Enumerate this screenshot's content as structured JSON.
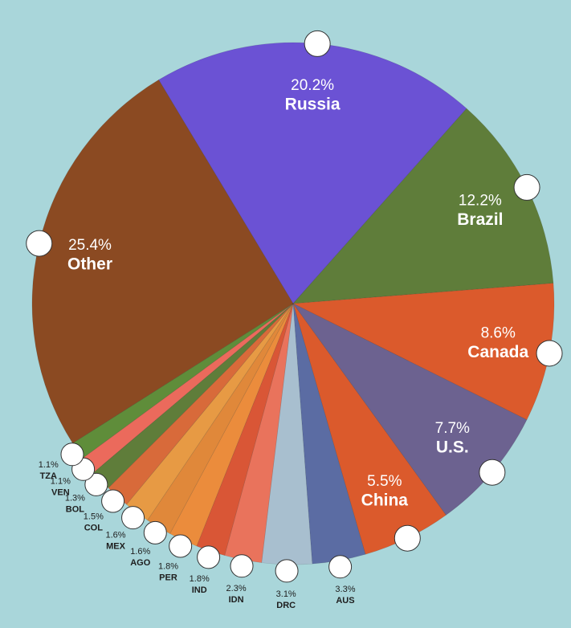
{
  "chart_data": {
    "type": "pie",
    "categories": [
      "Russia",
      "Brazil",
      "Canada",
      "U.S.",
      "China",
      "AUS",
      "DRC",
      "IDN",
      "IND",
      "PER",
      "AGO",
      "MEX",
      "COL",
      "BOL",
      "VEN",
      "TZA",
      "Other"
    ],
    "values": [
      20.2,
      12.2,
      8.6,
      7.7,
      5.5,
      3.3,
      3.1,
      2.3,
      1.8,
      1.8,
      1.6,
      1.6,
      1.5,
      1.3,
      1.1,
      1.1,
      25.4
    ],
    "value_labels": [
      "20.2%",
      "12.2%",
      "8.6%",
      "7.7%",
      "5.5%",
      "3.3%",
      "3.1%",
      "2.3%",
      "1.8%",
      "1.8%",
      "1.6%",
      "1.6%",
      "1.5%",
      "1.3%",
      "1.1%",
      "1.1%",
      "25.4%"
    ],
    "colors": [
      "#6b52d4",
      "#5f7d3a",
      "#db5a2c",
      "#6c6290",
      "#db5a2c",
      "#5b6ca3",
      "#a8bfcf",
      "#e9735c",
      "#d95636",
      "#eb8c3c",
      "#e0883a",
      "#e79a44",
      "#d86a3a",
      "#5f7d3a",
      "#eb6a5c",
      "#5f8d3a",
      "#8b4a22"
    ]
  }
}
